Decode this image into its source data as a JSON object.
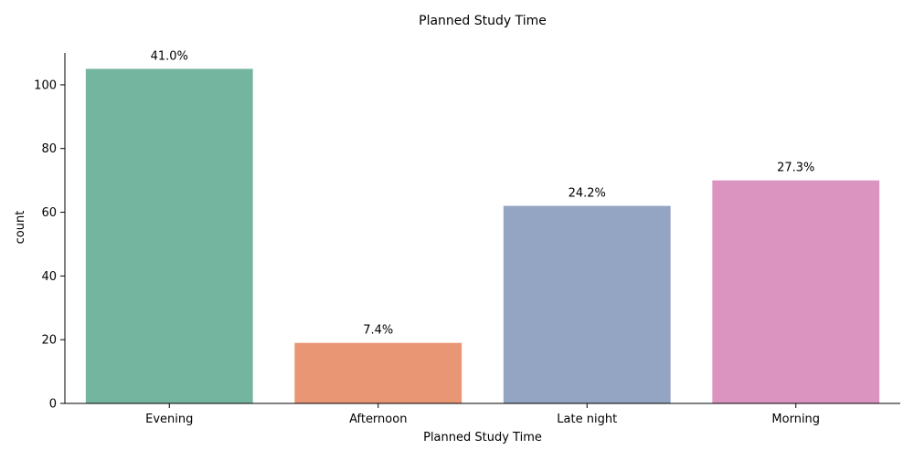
{
  "chart_data": {
    "type": "bar",
    "title": "Planned Study Time",
    "xlabel": "Planned Study Time",
    "ylabel": "count",
    "categories": [
      "Evening",
      "Afternoon",
      "Late night",
      "Morning"
    ],
    "values": [
      105,
      19,
      62,
      70
    ],
    "data_labels": [
      "41.0%",
      "7.4%",
      "24.2%",
      "27.3%"
    ],
    "colors": [
      "#73b59f",
      "#e99675",
      "#94a4c3",
      "#db94c0"
    ],
    "ylim": [
      0,
      110
    ],
    "yticks": [
      0,
      20,
      40,
      60,
      80,
      100
    ],
    "grid": false,
    "legend": "none"
  }
}
